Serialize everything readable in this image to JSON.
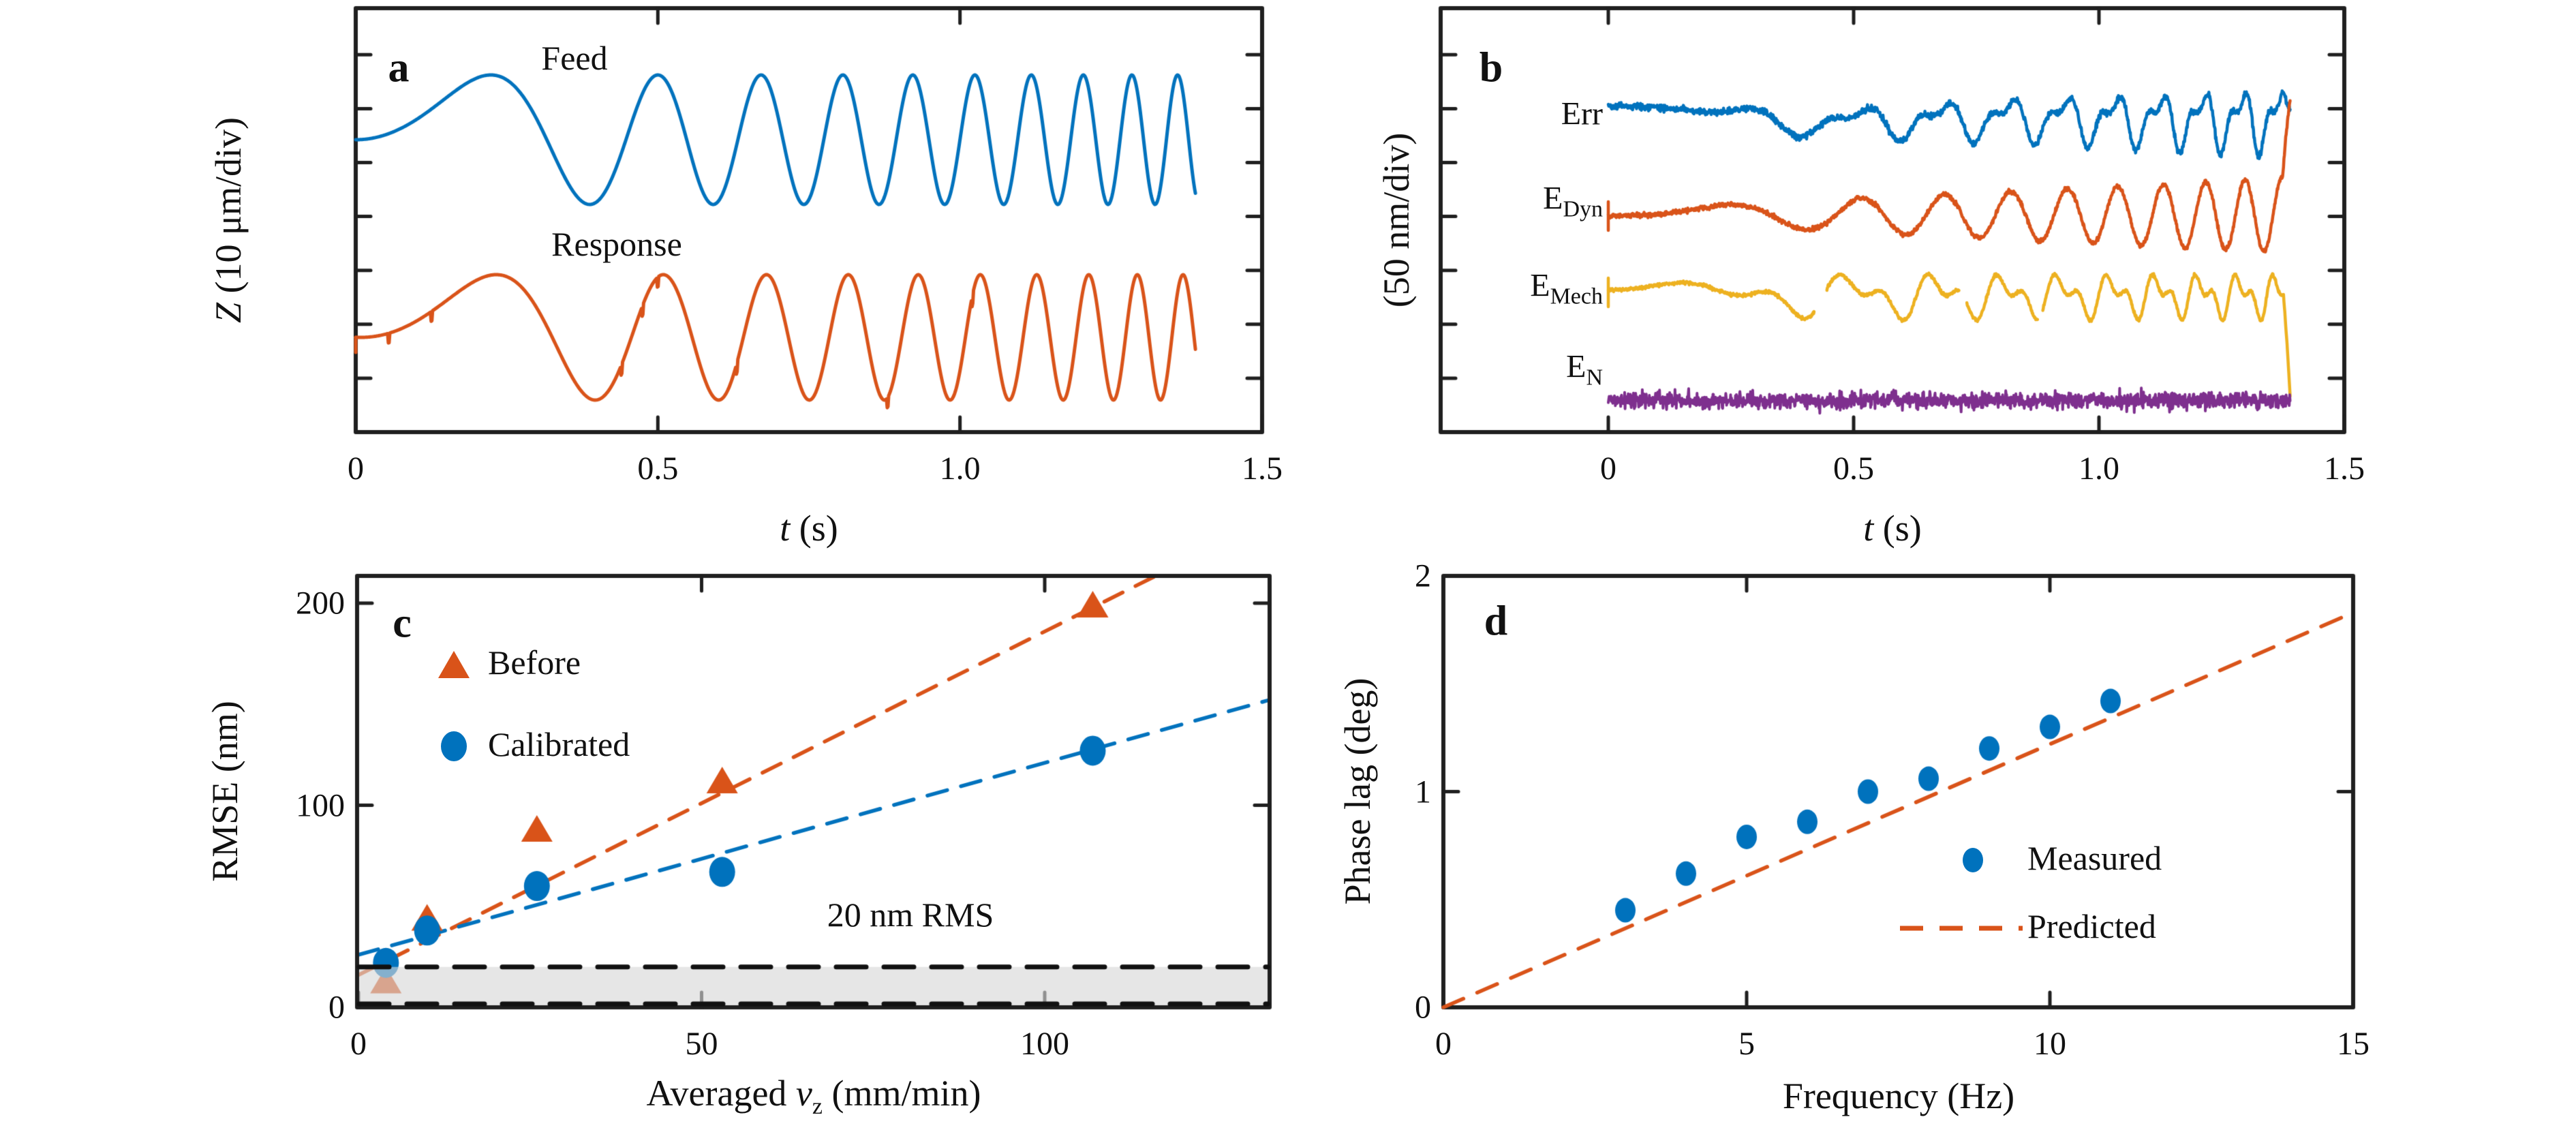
{
  "figure": {
    "background": "#ffffff",
    "axis_color": "#1f1f1f",
    "font_color": "#111111"
  },
  "colors": {
    "blue": "#0072BD",
    "orange": "#D95319",
    "yellow": "#EDB120",
    "purple": "#7E2F8E",
    "band_gray": "#d9d9d9",
    "black": "#111111"
  },
  "chart_data": [
    {
      "id": "a",
      "type": "line",
      "panel_label": "a",
      "ylabel_var": "Z",
      "ylabel_rest": " (10 μm/div)",
      "xlabel_var": "t",
      "xlabel_rest": " (s)",
      "xlim": [
        0,
        1.5
      ],
      "x_ticks": [
        0,
        0.5,
        1.0,
        1.5
      ],
      "x_tick_labels": [
        "0",
        "0.5",
        "1.0",
        "1.5"
      ],
      "y_axis": "unlabeled divisions, 10 μm per division",
      "signal": "quadratic chirp, phase = 5*t^2 cycles (0 to ~14 Hz), duration 1.39 s",
      "chirp_half_rate": 5,
      "t_end": 1.39,
      "series": [
        {
          "name": "Feed",
          "color": "blue",
          "amplitude_div": 1.2,
          "lag_s": 0
        },
        {
          "name": "Response",
          "color": "orange",
          "amplitude_div": 1.16,
          "lag_s": 0.009
        }
      ]
    },
    {
      "id": "b",
      "type": "line",
      "panel_label": "b",
      "ylabel": "(50 nm/div)",
      "xlabel_var": "t",
      "xlabel_rest": " (s)",
      "xlim": [
        0,
        1.5
      ],
      "x_ticks": [
        0,
        0.5,
        1.0,
        1.5
      ],
      "x_tick_labels": [
        "0",
        "0.5",
        "1.0",
        "1.5"
      ],
      "t_end": 1.39,
      "traces": [
        {
          "label_main": "Err",
          "label_sub": "",
          "color": "blue",
          "character": "chirp-synced error, amplitude grows ~5→30 nm, sharp peaks"
        },
        {
          "label_main": "E",
          "label_sub": "Dyn",
          "color": "orange",
          "character": "dynamic error, smooth growing oscillation ~4→35 nm, end spike"
        },
        {
          "label_main": "E",
          "label_sub": "Mech",
          "color": "yellow",
          "character": "mechanical error, irregular double-bump oscillation ~±20 nm"
        },
        {
          "label_main": "E",
          "label_sub": "N",
          "color": "purple",
          "character": "sensor noise floor, ~±10 nm broadband"
        }
      ]
    },
    {
      "id": "c",
      "type": "scatter",
      "panel_label": "c",
      "ylabel": "RMSE (nm)",
      "xlabel_prefix": "Averaged ",
      "xlabel_var": "v",
      "xlabel_sub": "z",
      "xlabel_rest": " (mm/min)",
      "xlim": [
        0,
        133
      ],
      "ylim": [
        0,
        213
      ],
      "x_ticks": [
        0,
        50,
        100
      ],
      "x_tick_labels": [
        "0",
        "50",
        "100"
      ],
      "y_ticks": [
        0,
        100,
        200
      ],
      "y_tick_labels": [
        "0",
        "100",
        "200"
      ],
      "series": [
        {
          "name": "Before",
          "marker": "triangle",
          "color": "orange",
          "x": [
            4,
            10,
            26,
            53,
            107
          ],
          "y": [
            13,
            44,
            88,
            112,
            199
          ],
          "fit": {
            "style": "dashed",
            "slope": 1.7,
            "intercept": 16
          }
        },
        {
          "name": "Calibrated",
          "marker": "circle",
          "color": "blue",
          "x": [
            4,
            10,
            26,
            53,
            107
          ],
          "y": [
            22,
            38,
            60,
            67,
            127
          ],
          "fit": {
            "style": "dashed",
            "slope": 0.95,
            "intercept": 26
          }
        }
      ],
      "threshold": {
        "label": "20 nm RMS",
        "value": 20,
        "band": [
          0,
          20
        ],
        "band_style": "gray shaded, black dashed borders"
      }
    },
    {
      "id": "d",
      "type": "scatter",
      "panel_label": "d",
      "ylabel": "Phase lag (deg)",
      "xlabel": "Frequency (Hz)",
      "xlim": [
        0,
        15
      ],
      "ylim": [
        0,
        2
      ],
      "x_ticks": [
        0,
        5,
        10,
        15
      ],
      "x_tick_labels": [
        "0",
        "5",
        "10",
        "15"
      ],
      "y_ticks": [
        0,
        1,
        2
      ],
      "y_tick_labels": [
        "0",
        "1",
        "2"
      ],
      "series": [
        {
          "name": "Measured",
          "marker": "circle",
          "color": "blue",
          "x": [
            3,
            4,
            5,
            6,
            7,
            8,
            9,
            10,
            11
          ],
          "y": [
            0.45,
            0.62,
            0.79,
            0.86,
            1.0,
            1.06,
            1.2,
            1.3,
            1.42
          ]
        },
        {
          "name": "Predicted",
          "marker": "dashed-line",
          "color": "orange",
          "slope_deg_per_hz": 0.122,
          "x_range": [
            0,
            14.85
          ]
        }
      ]
    }
  ]
}
